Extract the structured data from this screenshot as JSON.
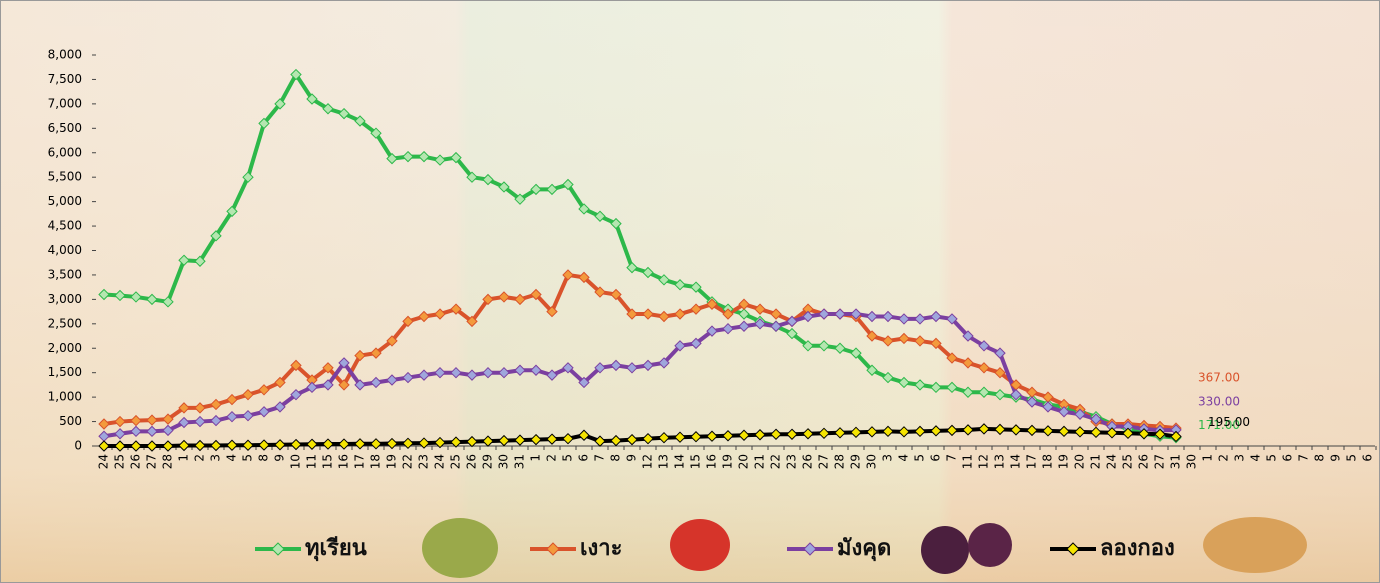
{
  "chart_data": {
    "type": "line",
    "categories": [
      "24",
      "25",
      "26",
      "27",
      "28",
      "1",
      "2",
      "3",
      "4",
      "5",
      "8",
      "9",
      "10",
      "11",
      "15",
      "16",
      "17",
      "18",
      "19",
      "22",
      "23",
      "24",
      "25",
      "26",
      "29",
      "30",
      "31",
      "1",
      "2",
      "5",
      "6",
      "7",
      "8",
      "9",
      "12",
      "13",
      "14",
      "15",
      "16",
      "19",
      "20",
      "21",
      "22",
      "23",
      "26",
      "27",
      "28",
      "29",
      "30",
      "3",
      "4",
      "5",
      "6",
      "7",
      "11",
      "12",
      "13",
      "14",
      "17",
      "18",
      "19",
      "20",
      "21",
      "24",
      "25",
      "26",
      "27",
      "31",
      "30",
      "1",
      "2",
      "3",
      "4",
      "5",
      "6",
      "7",
      "8",
      "9",
      "5",
      "6"
    ],
    "ylim": [
      0,
      8000
    ],
    "yticks": [
      0,
      500,
      {
        "value": 1000,
        "label": "1,000"
      },
      {
        "value": 1500,
        "label": "1,500"
      },
      {
        "value": 2000,
        "label": "2,000"
      },
      {
        "value": 2500,
        "label": "2,500"
      },
      {
        "value": 3000,
        "label": "3,000"
      },
      {
        "value": 3500,
        "label": "3,500"
      },
      {
        "value": 4000,
        "label": "4,000"
      },
      {
        "value": 4500,
        "label": "4,500"
      },
      {
        "value": 5000,
        "label": "5,000"
      },
      {
        "value": 5500,
        "label": "5,500"
      },
      {
        "value": 6000,
        "label": "6,000"
      },
      {
        "value": 6500,
        "label": "6,500"
      },
      {
        "value": 7000,
        "label": "7,000"
      },
      {
        "value": 7500,
        "label": "7,500"
      },
      {
        "value": 8000,
        "label": "8,000"
      }
    ],
    "series": [
      {
        "name": "ทุเรียน",
        "color": "#2db84a",
        "marker_color": "#b5e6b0",
        "values": [
          3100,
          3080,
          3050,
          3000,
          2950,
          3800,
          3780,
          4300,
          4800,
          5500,
          6600,
          7000,
          7600,
          7100,
          6900,
          6800,
          6650,
          6400,
          5880,
          5920,
          5920,
          5850,
          5900,
          5500,
          5450,
          5300,
          5050,
          5250,
          5250,
          5350,
          4850,
          4700,
          4550,
          3650,
          3550,
          3400,
          3300,
          3250,
          2950,
          2800,
          2700,
          2550,
          2450,
          2300,
          2050,
          2050,
          2000,
          1900,
          1550,
          1400,
          1300,
          1250,
          1200,
          1200,
          1100,
          1100,
          1050,
          1000,
          950,
          850,
          800,
          700,
          600,
          450,
          350,
          250,
          200,
          171,
          null,
          null,
          null,
          null,
          null,
          null,
          null,
          null,
          null,
          null,
          null,
          null
        ],
        "value_labels": [
          null,
          null,
          null,
          null,
          null,
          null,
          null,
          null,
          null,
          null,
          null,
          null,
          null,
          null,
          null,
          null,
          null,
          null,
          null,
          null,
          null,
          null,
          null,
          null,
          null,
          null,
          null,
          null,
          null,
          null,
          null,
          null,
          null,
          null,
          null,
          null,
          null,
          null,
          null,
          null,
          null,
          null,
          null,
          null,
          null,
          null,
          null,
          null,
          null,
          null,
          null,
          null,
          null,
          null,
          null,
          null,
          null,
          null,
          null,
          null,
          null,
          null,
          null,
          null,
          null,
          null,
          null,
          "171.00",
          null,
          null,
          null,
          null,
          null,
          null,
          null,
          null,
          null,
          null,
          null,
          null
        ]
      },
      {
        "name": "เงาะ",
        "color": "#d9532b",
        "marker_color": "#f39a3c",
        "values": [
          450,
          500,
          520,
          530,
          550,
          780,
          780,
          850,
          950,
          1050,
          1150,
          1300,
          1650,
          1350,
          1600,
          1250,
          1850,
          1900,
          2150,
          2550,
          2650,
          2700,
          2800,
          2550,
          3000,
          3050,
          3000,
          3100,
          2750,
          3500,
          3450,
          3150,
          3100,
          2700,
          2700,
          2650,
          2700,
          2800,
          2900,
          2700,
          2900,
          2800,
          2700,
          2550,
          2800,
          2700,
          2700,
          2650,
          2250,
          2150,
          2200,
          2150,
          2100,
          1800,
          1700,
          1600,
          1500,
          1250,
          1100,
          1000,
          850,
          750,
          500,
          450,
          450,
          420,
          400,
          367,
          null,
          null,
          null,
          null,
          null,
          null,
          null,
          null,
          null,
          null,
          null,
          null
        ],
        "value_labels": [
          null,
          null,
          null,
          null,
          null,
          null,
          null,
          null,
          null,
          null,
          null,
          null,
          null,
          null,
          null,
          null,
          null,
          null,
          null,
          null,
          null,
          null,
          null,
          null,
          null,
          null,
          null,
          null,
          null,
          null,
          null,
          null,
          null,
          null,
          null,
          null,
          null,
          null,
          null,
          null,
          null,
          null,
          null,
          null,
          null,
          null,
          null,
          null,
          null,
          null,
          null,
          null,
          null,
          null,
          null,
          null,
          null,
          null,
          null,
          null,
          null,
          null,
          null,
          null,
          null,
          null,
          null,
          "367.00",
          null,
          null,
          null,
          null,
          null,
          null,
          null,
          null,
          null,
          null,
          null,
          null
        ]
      },
      {
        "name": "มังคุด",
        "color": "#7b3fa0",
        "marker_color": "#9fa6dc",
        "values": [
          200,
          250,
          300,
          300,
          320,
          480,
          500,
          520,
          600,
          620,
          700,
          800,
          1050,
          1200,
          1250,
          1700,
          1250,
          1300,
          1350,
          1400,
          1450,
          1500,
          1500,
          1450,
          1500,
          1500,
          1550,
          1550,
          1450,
          1600,
          1300,
          1600,
          1650,
          1600,
          1650,
          1700,
          2050,
          2100,
          2350,
          2400,
          2450,
          2500,
          2450,
          2550,
          2650,
          2700,
          2700,
          2700,
          2650,
          2650,
          2600,
          2600,
          2650,
          2600,
          2250,
          2050,
          1900,
          1050,
          900,
          800,
          700,
          650,
          550,
          400,
          400,
          350,
          320,
          330,
          null,
          null,
          null,
          null,
          null,
          null,
          null,
          null,
          null,
          null,
          null,
          null
        ],
        "value_labels": [
          null,
          null,
          null,
          null,
          null,
          null,
          null,
          null,
          null,
          null,
          null,
          null,
          null,
          null,
          null,
          null,
          null,
          null,
          null,
          null,
          null,
          null,
          null,
          null,
          null,
          null,
          null,
          null,
          null,
          null,
          null,
          null,
          null,
          null,
          null,
          null,
          null,
          null,
          null,
          null,
          null,
          null,
          null,
          null,
          null,
          null,
          null,
          null,
          null,
          null,
          null,
          null,
          null,
          null,
          null,
          null,
          null,
          null,
          null,
          null,
          null,
          null,
          null,
          null,
          null,
          null,
          null,
          "330.00",
          null,
          null,
          null,
          null,
          null,
          null,
          null,
          null,
          null,
          null,
          null,
          null
        ]
      },
      {
        "name": "ลองกอง",
        "color": "#000000",
        "marker_color": "#f5e400",
        "values": [
          0,
          0,
          0,
          0,
          0,
          10,
          10,
          10,
          15,
          15,
          20,
          25,
          30,
          35,
          40,
          40,
          45,
          45,
          50,
          55,
          60,
          70,
          80,
          90,
          100,
          110,
          120,
          130,
          140,
          150,
          220,
          100,
          110,
          130,
          150,
          170,
          180,
          190,
          200,
          210,
          220,
          230,
          240,
          240,
          250,
          260,
          270,
          280,
          290,
          300,
          290,
          300,
          310,
          320,
          330,
          350,
          340,
          330,
          320,
          310,
          300,
          290,
          280,
          270,
          260,
          250,
          240,
          195,
          null,
          null,
          null,
          null,
          null,
          null,
          null,
          null,
          null,
          null,
          null,
          null
        ],
        "value_labels": [
          null,
          null,
          null,
          null,
          null,
          null,
          null,
          null,
          null,
          null,
          null,
          null,
          null,
          null,
          null,
          null,
          null,
          null,
          null,
          null,
          null,
          null,
          null,
          null,
          null,
          null,
          null,
          null,
          null,
          null,
          null,
          null,
          null,
          null,
          null,
          null,
          null,
          null,
          null,
          null,
          null,
          null,
          null,
          null,
          null,
          null,
          null,
          null,
          null,
          null,
          null,
          null,
          null,
          null,
          null,
          null,
          null,
          null,
          null,
          null,
          null,
          null,
          null,
          null,
          null,
          null,
          null,
          "195.00",
          null,
          null,
          null,
          null,
          null,
          null,
          null,
          null,
          null,
          null,
          null,
          null
        ]
      }
    ]
  }
}
